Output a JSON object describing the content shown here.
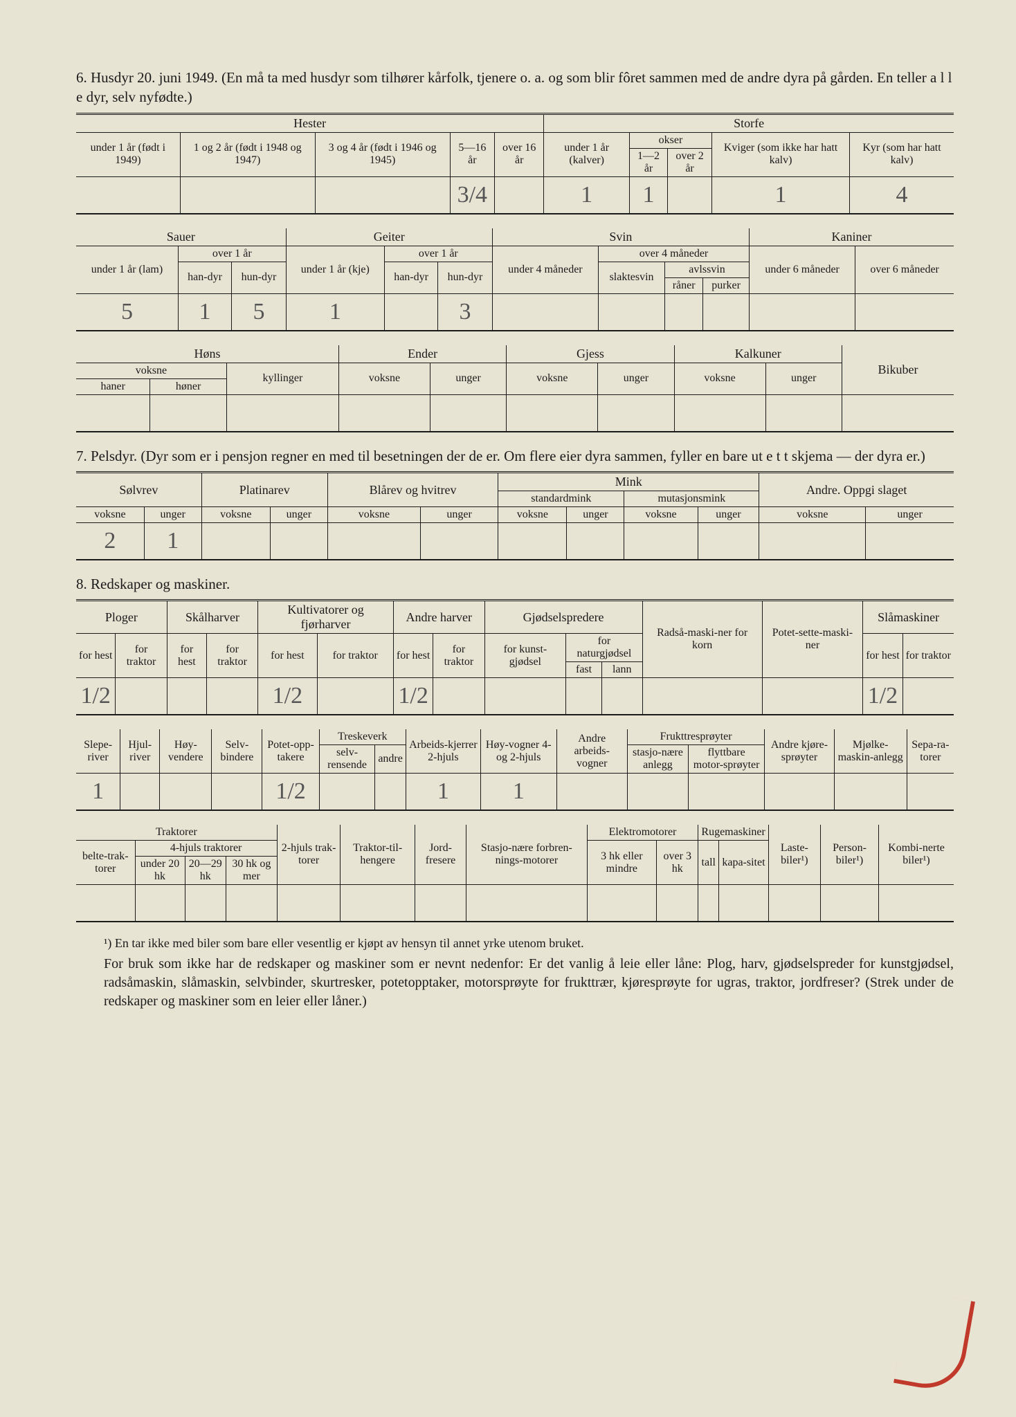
{
  "background_color": "#e8e4d4",
  "text_color": "#1a1a1a",
  "handwriting_color": "#555",
  "red_mark_color": "#c0392b",
  "section6": {
    "title": "6. Husdyr 20. juni 1949.  (En må ta med husdyr som tilhører kårfolk, tjenere o. a. og som blir fôret sammen med de andre dyra på gården.  En teller a l l e dyr, selv nyfødte.)",
    "table1": {
      "group_headers": [
        "Hester",
        "Storfe"
      ],
      "okser_header": "okser",
      "columns": [
        "under 1 år (født i 1949)",
        "1 og 2 år (født i 1948 og 1947)",
        "3 og 4 år (født i 1946 og 1945)",
        "5—16 år",
        "over 16 år",
        "under 1 år (kalver)",
        "1—2 år",
        "over 2 år",
        "Kviger (som ikke har hatt kalv)",
        "Kyr (som har hatt kalv)"
      ],
      "values": [
        "",
        "",
        "",
        "3/4",
        "",
        "1",
        "1",
        "",
        "1",
        "4"
      ]
    },
    "table2": {
      "group_headers": [
        "Sauer",
        "Geiter",
        "Svin",
        "Kaniner"
      ],
      "sub_over1_sau": "over 1 år",
      "sub_over1_geit": "over 1 år",
      "sub_over4": "over 4 måneder",
      "sub_avlssvin": "avlssvin",
      "columns": [
        "under 1 år (lam)",
        "han-dyr",
        "hun-dyr",
        "under 1 år (kje)",
        "han-dyr",
        "hun-dyr",
        "under 4 måneder",
        "slaktesvin",
        "råner",
        "purker",
        "under 6 måneder",
        "over 6 måneder"
      ],
      "values": [
        "5",
        "1",
        "5",
        "1",
        "",
        "3",
        "",
        "",
        "",
        "",
        "",
        ""
      ]
    },
    "table3": {
      "group_headers": [
        "Høns",
        "Ender",
        "Gjess",
        "Kalkuner",
        "Bikuber"
      ],
      "sub_voksne": "voksne",
      "columns": [
        "haner",
        "høner",
        "kyllinger",
        "voksne",
        "unger",
        "voksne",
        "unger",
        "voksne",
        "unger",
        ""
      ],
      "values": [
        "",
        "",
        "",
        "",
        "",
        "",
        "",
        "",
        "",
        ""
      ]
    }
  },
  "section7": {
    "title": "7. Pelsdyr.  (Dyr som er i pensjon regner en med til besetningen der de er.  Om flere eier dyra sammen, fyller en bare ut e t t skjema — der dyra er.)",
    "group_headers": [
      "Sølvrev",
      "Platinarev",
      "Blårev og hvitrev",
      "Mink",
      "Andre. Oppgi slaget"
    ],
    "mink_sub": [
      "standardmink",
      "mutasjonsmink"
    ],
    "col_labels": [
      "voksne",
      "unger"
    ],
    "values": [
      "2",
      "1",
      "",
      "",
      "",
      "",
      "",
      "",
      "",
      "",
      "",
      ""
    ]
  },
  "section8": {
    "title": "8. Redskaper og maskiner.",
    "table1": {
      "group_headers": [
        "Ploger",
        "Skålharver",
        "Kultivatorer og fjørharver",
        "Andre harver",
        "Gjødselspredere",
        "Radså-maski-ner for korn",
        "Potet-sette-maski-ner",
        "Slåmaskiner"
      ],
      "sub_gjodsel": [
        "for kunst-gjødsel",
        "for naturgjødsel"
      ],
      "sub_natur": [
        "fast",
        "lann"
      ],
      "col_pair": [
        "for hest",
        "for traktor"
      ],
      "values": [
        "1/2",
        "",
        "",
        "",
        "1/2",
        "",
        "1/2",
        "",
        "",
        "",
        "",
        "",
        "",
        "1/2",
        ""
      ]
    },
    "table2": {
      "headers": [
        "Slepe-river",
        "Hjul-river",
        "Høy-vendere",
        "Selv-bindere",
        "Potet-opp-takere",
        "Treskeverk",
        "Arbeids-kjerrer 2-hjuls",
        "Høy-vogner 4- og 2-hjuls",
        "Andre arbeids-vogner",
        "Frukttresprøyter",
        "Andre kjøre-sprøyter",
        "Mjølke-maskin-anlegg",
        "Sepa-ra-torer"
      ],
      "sub_treske": [
        "selv-rensende",
        "andre"
      ],
      "sub_frukt": [
        "stasjo-nære anlegg",
        "flyttbare motor-sprøyter"
      ],
      "values": [
        "1",
        "",
        "",
        "",
        "1/2",
        "",
        "",
        "1",
        "1",
        "",
        "",
        "",
        "",
        "",
        ""
      ]
    },
    "table3": {
      "headers_top": [
        "Traktorer"
      ],
      "belte": "belte-trak-torer",
      "fourwheel": "4-hjuls traktorer",
      "fourwheel_sub": [
        "under 20 hk",
        "20—29 hk",
        "30 hk og mer"
      ],
      "other_headers": [
        "2-hjuls trak-torer",
        "Traktor-til-hengere",
        "Jord-fresere",
        "Stasjo-nære forbren-nings-motorer",
        "Elektromotorer",
        "Rugemaskiner",
        "Laste-biler¹)",
        "Person-biler¹)",
        "Kombi-nerte biler¹)"
      ],
      "sub_elektro": [
        "3 hk eller mindre",
        "over 3 hk"
      ],
      "sub_ruge": [
        "tall",
        "kapa-sitet"
      ],
      "values": [
        "",
        "",
        "",
        "",
        "",
        "",
        "",
        "",
        "",
        "",
        "",
        "",
        "",
        "",
        ""
      ]
    }
  },
  "footnote": "¹) En tar ikke med biler som bare eller vesentlig er kjøpt av hensyn til annet yrke utenom bruket.",
  "bodytext": "For bruk som ikke har de redskaper og maskiner som er nevnt nedenfor: Er det vanlig å leie eller låne: Plog, harv, gjødselspreder for kunstgjødsel, radsåmaskin, slåmaskin, selvbinder, skurtresker, potetopptaker, motorsprøyte for frukttrær, kjøresprøyte for ugras, traktor, jordfreser? (Strek under de redskaper og maskiner som en leier eller låner.)"
}
